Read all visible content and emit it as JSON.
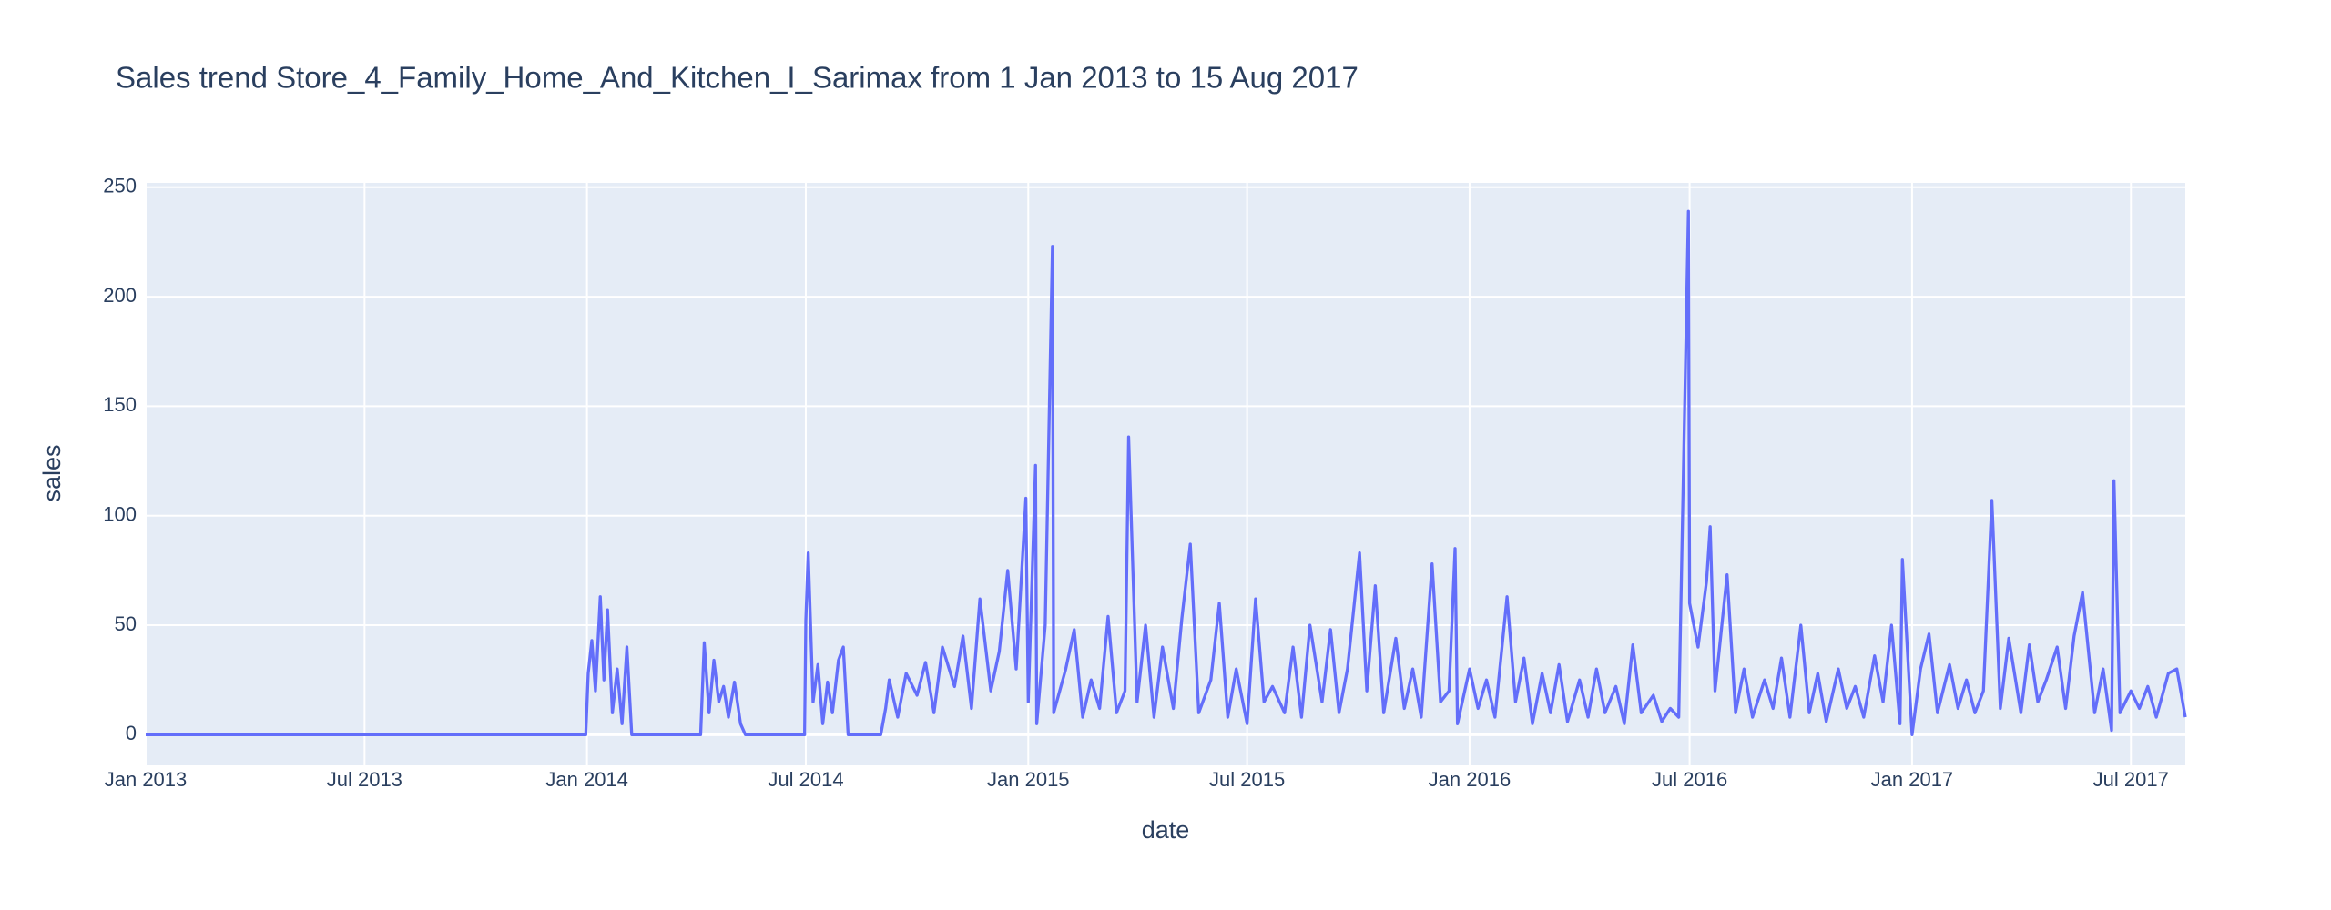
{
  "chart_data": {
    "type": "line",
    "title": "Sales trend Store_4_Family_Home_And_Kitchen_I_Sarimax from  1 Jan 2013 to 15 Aug 2017",
    "x_label": "date",
    "y_label": "sales",
    "xlim": [
      "2013-01-01",
      "2017-08-15"
    ],
    "xticks": [
      {
        "value": "2013-01-01",
        "label": "Jan 2013"
      },
      {
        "value": "2013-07-01",
        "label": "Jul 2013"
      },
      {
        "value": "2014-01-01",
        "label": "Jan 2014"
      },
      {
        "value": "2014-07-01",
        "label": "Jul 2014"
      },
      {
        "value": "2015-01-01",
        "label": "Jan 2015"
      },
      {
        "value": "2015-07-01",
        "label": "Jul 2015"
      },
      {
        "value": "2016-01-01",
        "label": "Jan 2016"
      },
      {
        "value": "2016-07-01",
        "label": "Jul 2016"
      },
      {
        "value": "2017-01-01",
        "label": "Jan 2017"
      },
      {
        "value": "2017-07-01",
        "label": "Jul 2017"
      }
    ],
    "ylim": [
      -14,
      252
    ],
    "yticks": [
      0,
      50,
      100,
      150,
      200,
      250
    ],
    "grid": true,
    "series": [
      {
        "name": "sales",
        "color": "#636efa",
        "x": [
          "2013-01-01",
          "2013-12-31",
          "2014-01-02",
          "2014-01-05",
          "2014-01-08",
          "2014-01-12",
          "2014-01-15",
          "2014-01-18",
          "2014-01-22",
          "2014-01-26",
          "2014-01-30",
          "2014-02-03",
          "2014-02-07",
          "2014-04-05",
          "2014-04-08",
          "2014-04-12",
          "2014-04-16",
          "2014-04-20",
          "2014-04-24",
          "2014-04-28",
          "2014-05-03",
          "2014-05-08",
          "2014-05-12",
          "2014-06-30",
          "2014-07-01",
          "2014-07-03",
          "2014-07-07",
          "2014-07-11",
          "2014-07-15",
          "2014-07-19",
          "2014-07-23",
          "2014-07-28",
          "2014-08-01",
          "2014-08-05",
          "2014-09-01",
          "2014-09-05",
          "2014-09-08",
          "2014-09-15",
          "2014-09-22",
          "2014-10-01",
          "2014-10-08",
          "2014-10-15",
          "2014-10-22",
          "2014-11-01",
          "2014-11-08",
          "2014-11-15",
          "2014-11-22",
          "2014-12-01",
          "2014-12-08",
          "2014-12-15",
          "2014-12-22",
          "2014-12-30",
          "2015-01-01",
          "2015-01-07",
          "2015-01-08",
          "2015-01-15",
          "2015-01-21",
          "2015-01-22",
          "2015-02-01",
          "2015-02-08",
          "2015-02-15",
          "2015-02-22",
          "2015-03-01",
          "2015-03-08",
          "2015-03-15",
          "2015-03-22",
          "2015-03-25",
          "2015-04-01",
          "2015-04-08",
          "2015-04-15",
          "2015-04-22",
          "2015-05-01",
          "2015-05-08",
          "2015-05-15",
          "2015-05-22",
          "2015-06-01",
          "2015-06-08",
          "2015-06-15",
          "2015-06-22",
          "2015-07-01",
          "2015-07-08",
          "2015-07-15",
          "2015-07-22",
          "2015-08-01",
          "2015-08-08",
          "2015-08-15",
          "2015-08-22",
          "2015-09-01",
          "2015-09-08",
          "2015-09-15",
          "2015-09-22",
          "2015-10-02",
          "2015-10-08",
          "2015-10-15",
          "2015-10-22",
          "2015-11-01",
          "2015-11-08",
          "2015-11-15",
          "2015-11-22",
          "2015-12-01",
          "2015-12-08",
          "2015-12-15",
          "2015-12-20",
          "2015-12-22",
          "2016-01-01",
          "2016-01-08",
          "2016-01-15",
          "2016-01-22",
          "2016-02-01",
          "2016-02-08",
          "2016-02-15",
          "2016-02-22",
          "2016-03-01",
          "2016-03-08",
          "2016-03-15",
          "2016-03-22",
          "2016-04-01",
          "2016-04-08",
          "2016-04-15",
          "2016-04-22",
          "2016-05-01",
          "2016-05-08",
          "2016-05-15",
          "2016-05-22",
          "2016-06-01",
          "2016-06-08",
          "2016-06-15",
          "2016-06-22",
          "2016-06-30",
          "2016-07-01",
          "2016-07-08",
          "2016-07-15",
          "2016-07-18",
          "2016-07-22",
          "2016-08-01",
          "2016-08-08",
          "2016-08-15",
          "2016-08-22",
          "2016-09-01",
          "2016-09-08",
          "2016-09-15",
          "2016-09-22",
          "2016-10-01",
          "2016-10-08",
          "2016-10-15",
          "2016-10-22",
          "2016-11-01",
          "2016-11-08",
          "2016-11-15",
          "2016-11-22",
          "2016-12-01",
          "2016-12-08",
          "2016-12-15",
          "2016-12-22",
          "2016-12-24",
          "2017-01-01",
          "2017-01-08",
          "2017-01-15",
          "2017-01-22",
          "2017-02-01",
          "2017-02-08",
          "2017-02-15",
          "2017-02-22",
          "2017-03-01",
          "2017-03-08",
          "2017-03-15",
          "2017-03-22",
          "2017-04-01",
          "2017-04-08",
          "2017-04-15",
          "2017-04-22",
          "2017-05-01",
          "2017-05-08",
          "2017-05-15",
          "2017-05-22",
          "2017-06-01",
          "2017-06-08",
          "2017-06-15",
          "2017-06-17",
          "2017-06-22",
          "2017-07-01",
          "2017-07-08",
          "2017-07-15",
          "2017-07-22",
          "2017-08-01",
          "2017-08-08",
          "2017-08-15"
        ],
        "values": [
          0,
          0,
          28,
          43,
          20,
          63,
          25,
          57,
          10,
          30,
          5,
          40,
          0,
          0,
          42,
          10,
          34,
          15,
          22,
          8,
          24,
          5,
          0,
          0,
          52,
          83,
          15,
          32,
          5,
          24,
          10,
          34,
          40,
          0,
          0,
          12,
          25,
          8,
          28,
          18,
          33,
          10,
          40,
          22,
          45,
          12,
          62,
          20,
          38,
          75,
          30,
          108,
          15,
          123,
          5,
          50,
          223,
          10,
          30,
          48,
          8,
          25,
          12,
          54,
          10,
          20,
          136,
          15,
          50,
          8,
          40,
          12,
          53,
          87,
          10,
          25,
          60,
          8,
          30,
          5,
          62,
          15,
          22,
          10,
          40,
          8,
          50,
          15,
          48,
          10,
          30,
          83,
          20,
          68,
          10,
          44,
          12,
          30,
          8,
          78,
          15,
          20,
          85,
          5,
          30,
          12,
          25,
          8,
          63,
          15,
          35,
          5,
          28,
          10,
          32,
          6,
          25,
          8,
          30,
          10,
          22,
          5,
          41,
          10,
          18,
          6,
          12,
          8,
          239,
          60,
          40,
          70,
          95,
          20,
          73,
          10,
          30,
          8,
          25,
          12,
          35,
          8,
          50,
          10,
          28,
          6,
          30,
          12,
          22,
          8,
          36,
          15,
          50,
          5,
          80,
          0,
          30,
          46,
          10,
          32,
          12,
          25,
          10,
          20,
          107,
          12,
          44,
          10,
          41,
          15,
          25,
          40,
          12,
          45,
          65,
          10,
          30,
          2,
          116,
          10,
          20,
          12,
          22,
          8,
          28,
          30,
          8
        ]
      }
    ]
  }
}
